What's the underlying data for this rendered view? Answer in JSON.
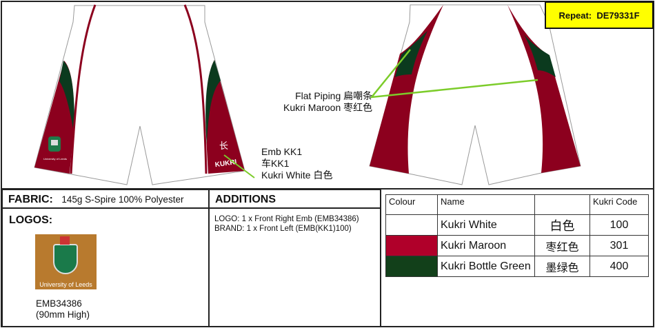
{
  "repeat": {
    "label": "Repeat:",
    "code": "DE79331F"
  },
  "front_callout": {
    "line1": "Emb KK1",
    "line2": "车KK1",
    "line3": "Kukri White 白色"
  },
  "back_callout": {
    "line1": "Flat Piping 扁嘲条",
    "line2": "Kukri Maroon 枣红色"
  },
  "garment": {
    "brand_mark": "KUKRI",
    "crest_text": "University of Leeds"
  },
  "fabric": {
    "label": "FABRIC:",
    "value": "145g S-Spire 100% Polyester"
  },
  "logos": {
    "label": "LOGOS:",
    "logo_text": "University of Leeds",
    "code": "EMB34386",
    "size": "(90mm High)"
  },
  "additions": {
    "label": "ADDITIONS",
    "lines": [
      "LOGO: 1 x Front Right Emb (EMB34386)",
      "BRAND: 1 x Front Left (EMB(KK1)100)"
    ]
  },
  "colour_table": {
    "headers": [
      "Colour",
      "Name",
      "",
      "Kukri Code"
    ],
    "rows": [
      {
        "swatch": "#ffffff",
        "name": "Kukri White",
        "chinese": "白色",
        "code": "100"
      },
      {
        "swatch": "#b0002a",
        "name": "Kukri Maroon",
        "chinese": "枣红色",
        "code": "301"
      },
      {
        "swatch": "#12401a",
        "name": "Kukri Bottle Green",
        "chinese": "墨绿色",
        "code": "400"
      }
    ]
  },
  "colors": {
    "maroon": "#8c001e",
    "green": "#0b3a1e",
    "callout_line": "#7ccc2a",
    "repeat_bg": "#ffff00"
  }
}
